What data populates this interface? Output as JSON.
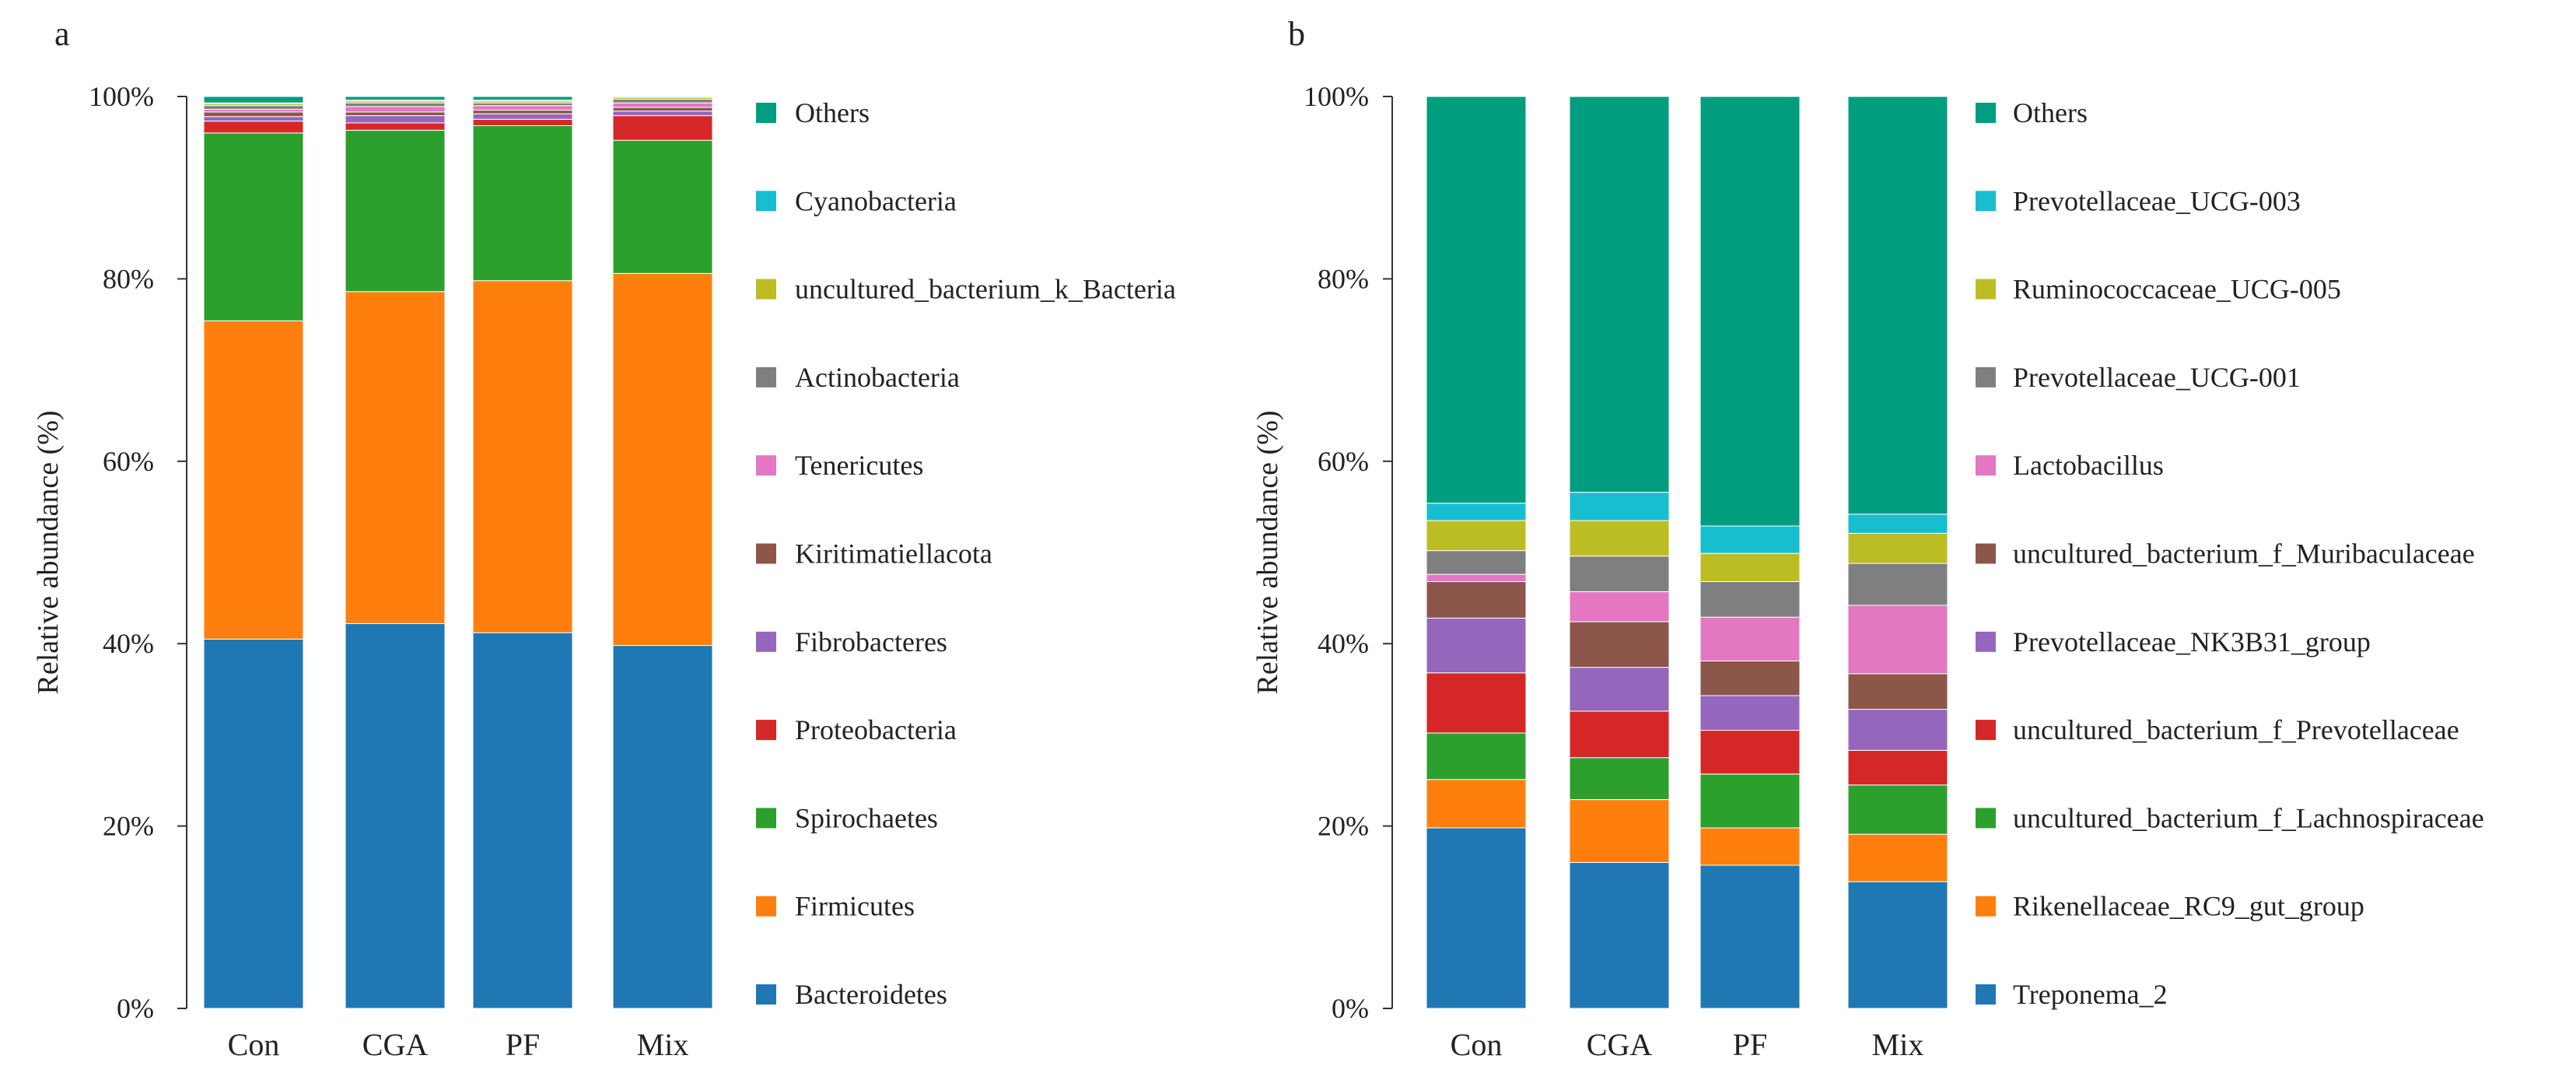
{
  "chart_data": [
    {
      "panel_label": "a",
      "type": "bar",
      "stacked": true,
      "ylabel": "Relative abundance (%)",
      "ylim": [
        0,
        100
      ],
      "yticks": [
        "0%",
        "20%",
        "40%",
        "60%",
        "80%",
        "100%"
      ],
      "categories": [
        "Con",
        "CGA",
        "PF",
        "Mix"
      ],
      "series": [
        {
          "name": "Bacteroidetes",
          "color": "#1f77b4",
          "values": [
            40.5,
            42.2,
            41.2,
            39.8
          ]
        },
        {
          "name": "Firmicutes",
          "color": "#ff7f0e",
          "values": [
            34.9,
            36.4,
            38.6,
            40.8
          ]
        },
        {
          "name": "Spirochaetes",
          "color": "#2ca02c",
          "values": [
            20.6,
            17.7,
            17.0,
            14.6
          ]
        },
        {
          "name": "Proteobacteria",
          "color": "#d62728",
          "values": [
            1.3,
            0.8,
            0.7,
            2.7
          ]
        },
        {
          "name": "Fibrobacteres",
          "color": "#9467bd",
          "values": [
            0.5,
            0.8,
            0.6,
            0.5
          ]
        },
        {
          "name": "Kiritimatiellacota",
          "color": "#8c564b",
          "values": [
            0.5,
            0.4,
            0.4,
            0.4
          ]
        },
        {
          "name": "Tenericutes",
          "color": "#e377c2",
          "values": [
            0.3,
            0.6,
            0.5,
            0.5
          ]
        },
        {
          "name": "Actinobacteria",
          "color": "#7f7f7f",
          "values": [
            0.4,
            0.4,
            0.3,
            0.4
          ]
        },
        {
          "name": "uncultured_bacterium_k_Bacteria",
          "color": "#bcbd22",
          "values": [
            0.2,
            0.2,
            0.2,
            0.2
          ]
        },
        {
          "name": "Cyanobacteria",
          "color": "#17becf",
          "values": [
            0.1,
            0.1,
            0.1,
            0.1
          ]
        },
        {
          "name": "Others",
          "color": "#009e7e",
          "values": [
            0.7,
            0.4,
            0.4,
            0.0
          ]
        }
      ],
      "legend_order": [
        "Others",
        "Cyanobacteria",
        "uncultured_bacterium_k_Bacteria",
        "Actinobacteria",
        "Tenericutes",
        "Kiritimatiellacota",
        "Fibrobacteres",
        "Proteobacteria",
        "Spirochaetes",
        "Firmicutes",
        "Bacteroidetes"
      ],
      "legend_position": "right"
    },
    {
      "panel_label": "b",
      "type": "bar",
      "stacked": true,
      "ylabel": "Relative abundance (%)",
      "ylim": [
        0,
        100
      ],
      "yticks": [
        "0%",
        "20%",
        "40%",
        "60%",
        "80%",
        "100%"
      ],
      "categories": [
        "Con",
        "CGA",
        "PF",
        "Mix"
      ],
      "series": [
        {
          "name": "Treponema_2",
          "color": "#1f77b4",
          "values": [
            19.8,
            16.0,
            15.7,
            13.9
          ]
        },
        {
          "name": "Rikenellaceae_RC9_gut_group",
          "color": "#ff7f0e",
          "values": [
            5.3,
            6.9,
            4.1,
            5.2
          ]
        },
        {
          "name": "uncultured_bacterium_f_Lachnospiraceae",
          "color": "#2ca02c",
          "values": [
            5.1,
            4.6,
            5.9,
            5.4
          ]
        },
        {
          "name": "uncultured_bacterium_f_Prevotellaceae",
          "color": "#d62728",
          "values": [
            6.6,
            5.1,
            4.8,
            3.8
          ]
        },
        {
          "name": "Prevotellaceae_NK3B31_group",
          "color": "#9467bd",
          "values": [
            6.0,
            4.8,
            3.8,
            4.5
          ]
        },
        {
          "name": "uncultured_bacterium_f_Muribaculaceae",
          "color": "#8c564b",
          "values": [
            4.0,
            5.0,
            3.8,
            3.9
          ]
        },
        {
          "name": "Lactobacillus",
          "color": "#e377c2",
          "values": [
            0.8,
            3.3,
            4.8,
            7.5
          ]
        },
        {
          "name": "Prevotellaceae_UCG-001",
          "color": "#7f7f7f",
          "values": [
            2.6,
            3.9,
            3.9,
            4.6
          ]
        },
        {
          "name": "Ruminococcaceae_UCG-005",
          "color": "#bcbd22",
          "values": [
            3.3,
            3.9,
            3.1,
            3.3
          ]
        },
        {
          "name": "Prevotellaceae_UCG-003",
          "color": "#17becf",
          "values": [
            1.9,
            3.1,
            3.0,
            2.1
          ]
        },
        {
          "name": "Others",
          "color": "#009e7e",
          "values": [
            44.6,
            43.4,
            47.1,
            45.8
          ]
        }
      ],
      "legend_order": [
        "Others",
        "Prevotellaceae_UCG-003",
        "Ruminococcaceae_UCG-005",
        "Prevotellaceae_UCG-001",
        "Lactobacillus",
        "uncultured_bacterium_f_Muribaculaceae",
        "Prevotellaceae_NK3B31_group",
        "uncultured_bacterium_f_Prevotellaceae",
        "uncultured_bacterium_f_Lachnospiraceae",
        "Rikenellaceae_RC9_gut_group",
        "Treponema_2"
      ],
      "legend_position": "right"
    }
  ]
}
